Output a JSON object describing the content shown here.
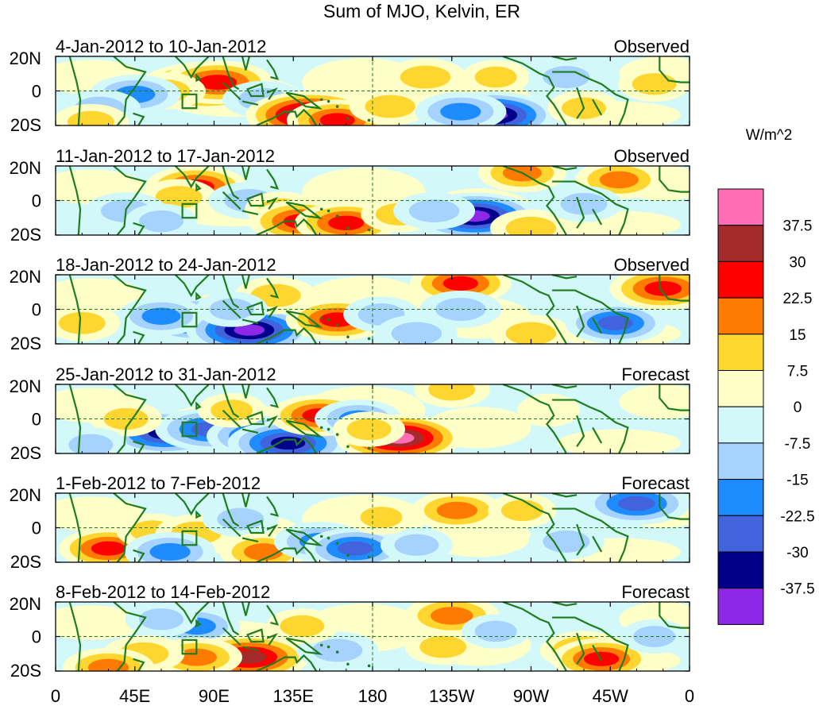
{
  "chart_data": {
    "type": "heatmap",
    "title": "Sum of MJO, Kelvin, ER",
    "colorbar": {
      "unit_label": "W/m^2",
      "tick_labels": [
        "37.5",
        "30",
        "22.5",
        "15",
        "7.5",
        "0",
        "-7.5",
        "-15",
        "-22.5",
        "-30",
        "-37.5"
      ],
      "levels": [
        {
          "range": [
            37.5,
            null
          ],
          "color": "#ff6eb4"
        },
        {
          "range": [
            30,
            37.5
          ],
          "color": "#a52a2a"
        },
        {
          "range": [
            22.5,
            30
          ],
          "color": "#ff0000"
        },
        {
          "range": [
            15,
            22.5
          ],
          "color": "#ff7a00"
        },
        {
          "range": [
            7.5,
            15
          ],
          "color": "#ffd530"
        },
        {
          "range": [
            0,
            7.5
          ],
          "color": "#ffffc8"
        },
        {
          "range": [
            -7.5,
            0
          ],
          "color": "#d2f8fa"
        },
        {
          "range": [
            -15,
            -7.5
          ],
          "color": "#a5d2ff"
        },
        {
          "range": [
            -22.5,
            -15
          ],
          "color": "#1e8cff"
        },
        {
          "range": [
            -30,
            -22.5
          ],
          "color": "#4164dc"
        },
        {
          "range": [
            -37.5,
            -30
          ],
          "color": "#00008b"
        },
        {
          "range": [
            null,
            -37.5
          ],
          "color": "#8c28e6"
        }
      ]
    },
    "x_axis": {
      "lon_range": [
        0,
        360
      ],
      "tick_lons": [
        0,
        45,
        90,
        135,
        180,
        225,
        270,
        315,
        360
      ],
      "tick_labels": [
        "0",
        "45E",
        "90E",
        "135E",
        "180",
        "135W",
        "90W",
        "45W",
        "0"
      ]
    },
    "y_axis": {
      "lat_range": [
        -20,
        20
      ],
      "tick_lats": [
        20,
        0,
        -20
      ],
      "tick_labels": [
        "20N",
        "0",
        "20S"
      ]
    },
    "panels": [
      {
        "period": "4-Jan-2012 to 10-Jan-2012",
        "kind": "Observed",
        "anomalies": [
          {
            "lon": 85,
            "lat": 3,
            "value": 40
          },
          {
            "lon": 92,
            "lat": 5,
            "value": 30
          },
          {
            "lon": 62,
            "lat": 0,
            "value": 15
          },
          {
            "lon": 45,
            "lat": -2,
            "value": -20
          },
          {
            "lon": 25,
            "lat": -10,
            "value": -15
          },
          {
            "lon": 118,
            "lat": -5,
            "value": -15
          },
          {
            "lon": 145,
            "lat": -14,
            "value": 40
          },
          {
            "lon": 160,
            "lat": -17,
            "value": 25
          },
          {
            "lon": 190,
            "lat": -9,
            "value": 15
          },
          {
            "lon": 210,
            "lat": 8,
            "value": 15
          },
          {
            "lon": 250,
            "lat": 8,
            "value": 8
          },
          {
            "lon": 248,
            "lat": -14,
            "value": -38
          },
          {
            "lon": 230,
            "lat": -12,
            "value": -20
          },
          {
            "lon": 290,
            "lat": 8,
            "value": -12
          },
          {
            "lon": 300,
            "lat": -10,
            "value": 10
          },
          {
            "lon": 340,
            "lat": 4,
            "value": 10
          },
          {
            "lon": 20,
            "lat": -18,
            "value": 12
          }
        ]
      },
      {
        "period": "11-Jan-2012 to 17-Jan-2012",
        "kind": "Observed",
        "anomalies": [
          {
            "lon": 80,
            "lat": 8,
            "value": 26
          },
          {
            "lon": 70,
            "lat": 2,
            "value": 12
          },
          {
            "lon": 40,
            "lat": -6,
            "value": -15
          },
          {
            "lon": 110,
            "lat": 0,
            "value": -15
          },
          {
            "lon": 128,
            "lat": -5,
            "value": 10
          },
          {
            "lon": 140,
            "lat": -12,
            "value": 28
          },
          {
            "lon": 165,
            "lat": -13,
            "value": 26
          },
          {
            "lon": 195,
            "lat": -8,
            "value": 12
          },
          {
            "lon": 238,
            "lat": -9,
            "value": -38
          },
          {
            "lon": 215,
            "lat": -6,
            "value": -15
          },
          {
            "lon": 265,
            "lat": 16,
            "value": 18
          },
          {
            "lon": 320,
            "lat": 12,
            "value": 18
          },
          {
            "lon": 270,
            "lat": -16,
            "value": 15
          },
          {
            "lon": 300,
            "lat": -2,
            "value": -12
          },
          {
            "lon": 60,
            "lat": -12,
            "value": -10
          }
        ]
      },
      {
        "period": "18-Jan-2012 to 24-Jan-2012",
        "kind": "Observed",
        "anomalies": [
          {
            "lon": 80,
            "lat": -6,
            "value": -33
          },
          {
            "lon": 60,
            "lat": -4,
            "value": -18
          },
          {
            "lon": 110,
            "lat": -12,
            "value": -38
          },
          {
            "lon": 125,
            "lat": 8,
            "value": 15
          },
          {
            "lon": 160,
            "lat": -6,
            "value": 26
          },
          {
            "lon": 185,
            "lat": -3,
            "value": -12
          },
          {
            "lon": 205,
            "lat": -14,
            "value": -15
          },
          {
            "lon": 230,
            "lat": 15,
            "value": 25
          },
          {
            "lon": 230,
            "lat": 0,
            "value": -15
          },
          {
            "lon": 270,
            "lat": -14,
            "value": 15
          },
          {
            "lon": 318,
            "lat": -8,
            "value": -25
          },
          {
            "lon": 345,
            "lat": 12,
            "value": 28
          },
          {
            "lon": 15,
            "lat": -8,
            "value": 12
          },
          {
            "lon": 100,
            "lat": 0,
            "value": -10
          }
        ]
      },
      {
        "period": "25-Jan-2012 to 31-Jan-2012",
        "kind": "Forecast",
        "anomalies": [
          {
            "lon": 62,
            "lat": -8,
            "value": -33
          },
          {
            "lon": 88,
            "lat": -6,
            "value": -30
          },
          {
            "lon": 115,
            "lat": -10,
            "value": -26
          },
          {
            "lon": 132,
            "lat": -14,
            "value": -35
          },
          {
            "lon": 150,
            "lat": 2,
            "value": 25
          },
          {
            "lon": 172,
            "lat": 0,
            "value": -18
          },
          {
            "lon": 195,
            "lat": -11,
            "value": 38
          },
          {
            "lon": 178,
            "lat": -6,
            "value": 10
          },
          {
            "lon": 225,
            "lat": 17,
            "value": 12
          },
          {
            "lon": 40,
            "lat": 0,
            "value": 10
          },
          {
            "lon": 100,
            "lat": 5,
            "value": 8
          },
          {
            "lon": 280,
            "lat": 5,
            "value": 5
          },
          {
            "lon": 20,
            "lat": -15,
            "value": -10
          }
        ]
      },
      {
        "period": "1-Feb-2012 to 7-Feb-2012",
        "kind": "Forecast",
        "anomalies": [
          {
            "lon": 30,
            "lat": -12,
            "value": 24
          },
          {
            "lon": 55,
            "lat": -2,
            "value": 10
          },
          {
            "lon": 80,
            "lat": -3,
            "value": 15
          },
          {
            "lon": 65,
            "lat": -14,
            "value": -20
          },
          {
            "lon": 105,
            "lat": 5,
            "value": -12
          },
          {
            "lon": 118,
            "lat": -14,
            "value": 18
          },
          {
            "lon": 150,
            "lat": -8,
            "value": -20
          },
          {
            "lon": 170,
            "lat": -12,
            "value": -25
          },
          {
            "lon": 205,
            "lat": -10,
            "value": -10
          },
          {
            "lon": 228,
            "lat": 10,
            "value": 20
          },
          {
            "lon": 265,
            "lat": 10,
            "value": 8
          },
          {
            "lon": 290,
            "lat": -8,
            "value": -12
          },
          {
            "lon": 330,
            "lat": 14,
            "value": -28
          },
          {
            "lon": 185,
            "lat": 6,
            "value": 8
          }
        ]
      },
      {
        "period": "8-Feb-2012 to 14-Feb-2012",
        "kind": "Forecast",
        "anomalies": [
          {
            "lon": 80,
            "lat": 6,
            "value": -18
          },
          {
            "lon": 60,
            "lat": 10,
            "value": -10
          },
          {
            "lon": 110,
            "lat": -12,
            "value": 35
          },
          {
            "lon": 80,
            "lat": -12,
            "value": 20
          },
          {
            "lon": 50,
            "lat": -10,
            "value": 15
          },
          {
            "lon": 30,
            "lat": -18,
            "value": 20
          },
          {
            "lon": 160,
            "lat": -8,
            "value": -15
          },
          {
            "lon": 140,
            "lat": 6,
            "value": 10
          },
          {
            "lon": 220,
            "lat": -6,
            "value": 12
          },
          {
            "lon": 225,
            "lat": 12,
            "value": 22
          },
          {
            "lon": 300,
            "lat": -8,
            "value": 18
          },
          {
            "lon": 310,
            "lat": -13,
            "value": 25
          },
          {
            "lon": 340,
            "lat": 0,
            "value": -8
          },
          {
            "lon": 250,
            "lat": 3,
            "value": -8
          }
        ]
      }
    ]
  }
}
